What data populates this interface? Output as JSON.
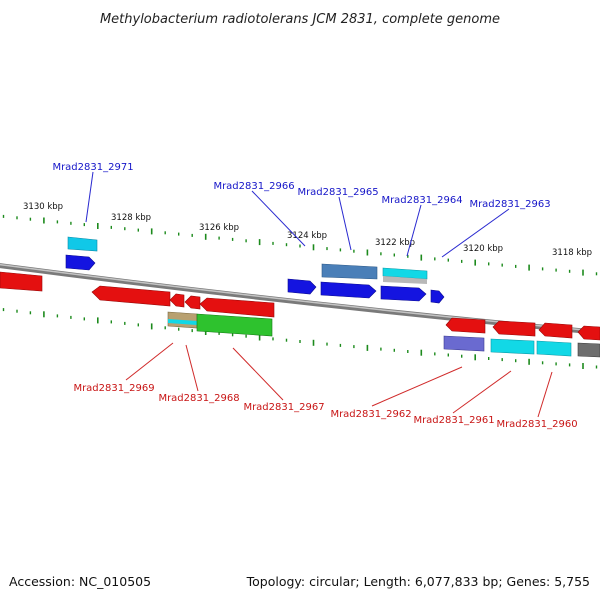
{
  "title": "Methylobacterium radiotolerans JCM 2831, complete genome",
  "footer": {
    "accession": "Accession: NC_010505",
    "summary": "Topology: circular; Length: 6,077,833 bp; Genes: 5,755"
  },
  "scale_labels": [
    "3130 kbp",
    "3128 kbp",
    "3126 kbp",
    "3124 kbp",
    "3122 kbp",
    "3120 kbp",
    "3118 kbp"
  ],
  "top_gene_labels": [
    "Mrad2831_2971",
    "Mrad2831_2966",
    "Mrad2831_2965",
    "Mrad2831_2964",
    "Mrad2831_2963"
  ],
  "bottom_gene_labels": [
    "Mrad2831_2969",
    "Mrad2831_2968",
    "Mrad2831_2967",
    "Mrad2831_2962",
    "Mrad2831_2961",
    "Mrad2831_2960"
  ],
  "colors": {
    "label_top": "#1515c8",
    "label_bottom": "#c81515",
    "leader_top": "#2a2ad0",
    "leader_bottom": "#d02a2a",
    "backbone": "#8a8a8a",
    "tick": "#1c8a1c",
    "forward_cds": "#1414e0",
    "reverse_cds": "#e41010",
    "cyan_feature": "#12d8e6",
    "steelblue_feature": "#4a7fb8",
    "green_feature": "#2ec22e",
    "tan_feature": "#b8a070",
    "slate_feature": "#6a6ad0",
    "gray_feature": "#6e6e6e",
    "light_gray_feature": "#b8b8b8"
  }
}
